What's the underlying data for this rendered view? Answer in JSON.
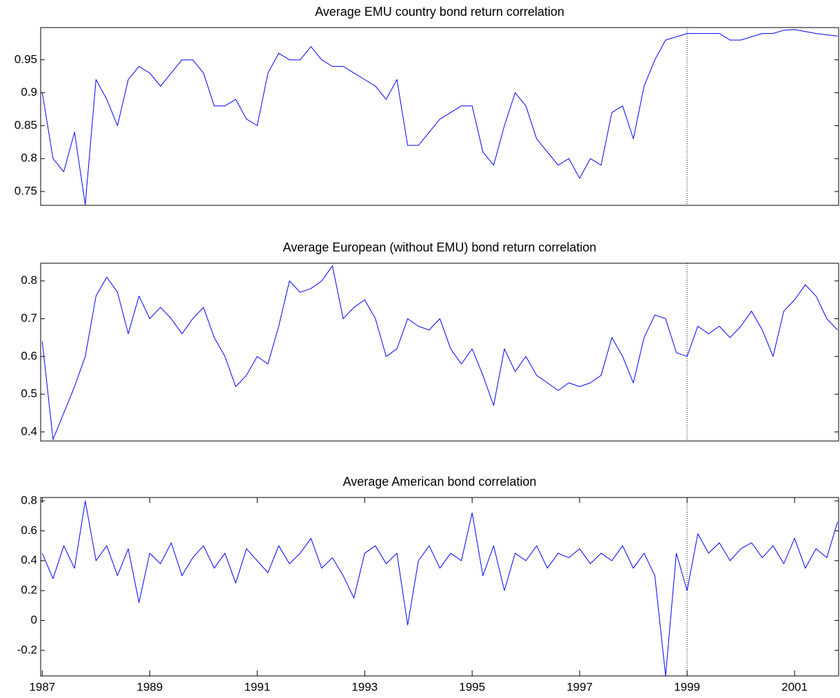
{
  "chart_data": [
    {
      "type": "line",
      "title": "Average EMU country bond return correlation",
      "color": "#0000ff",
      "x": [
        1987.0,
        1987.2,
        1987.4,
        1987.6,
        1987.8,
        1988.0,
        1988.2,
        1988.4,
        1988.6,
        1988.8,
        1989.0,
        1989.2,
        1989.4,
        1989.6,
        1989.8,
        1990.0,
        1990.2,
        1990.4,
        1990.6,
        1990.8,
        1991.0,
        1991.2,
        1991.4,
        1991.6,
        1991.8,
        1992.0,
        1992.2,
        1992.4,
        1992.6,
        1992.8,
        1993.0,
        1993.2,
        1993.4,
        1993.6,
        1993.8,
        1994.0,
        1994.2,
        1994.4,
        1994.6,
        1994.8,
        1995.0,
        1995.2,
        1995.4,
        1995.6,
        1995.8,
        1996.0,
        1996.2,
        1996.4,
        1996.6,
        1996.8,
        1997.0,
        1997.2,
        1997.4,
        1997.6,
        1997.8,
        1998.0,
        1998.2,
        1998.4,
        1998.6,
        1998.8,
        1999.0,
        1999.2,
        1999.4,
        1999.6,
        1999.8,
        2000.0,
        2000.2,
        2000.4,
        2000.6,
        2000.8,
        2001.0,
        2001.2,
        2001.4,
        2001.6,
        2001.8
      ],
      "values": [
        0.9,
        0.8,
        0.78,
        0.84,
        0.73,
        0.92,
        0.89,
        0.85,
        0.92,
        0.94,
        0.93,
        0.91,
        0.93,
        0.95,
        0.95,
        0.93,
        0.88,
        0.88,
        0.89,
        0.86,
        0.85,
        0.93,
        0.96,
        0.95,
        0.95,
        0.97,
        0.95,
        0.94,
        0.94,
        0.93,
        0.92,
        0.91,
        0.89,
        0.92,
        0.82,
        0.82,
        0.84,
        0.86,
        0.87,
        0.88,
        0.88,
        0.81,
        0.79,
        0.85,
        0.9,
        0.88,
        0.83,
        0.81,
        0.79,
        0.8,
        0.77,
        0.8,
        0.79,
        0.87,
        0.88,
        0.83,
        0.91,
        0.95,
        0.98,
        0.985,
        0.99,
        0.99,
        0.99,
        0.99,
        0.98,
        0.98,
        0.985,
        0.99,
        0.99,
        0.995,
        0.996,
        0.993,
        0.99,
        0.988,
        0.986
      ],
      "ylim": [
        0.729,
        0.999
      ],
      "yticks": [
        0.75,
        0.8,
        0.85,
        0.9,
        0.95
      ],
      "xlim": [
        1986.97,
        2001.82
      ],
      "xticks": [],
      "vline": 1999
    },
    {
      "type": "line",
      "title": "Average European (without EMU) bond return correlation",
      "color": "#0000ff",
      "x": [
        1987.0,
        1987.2,
        1987.4,
        1987.6,
        1987.8,
        1988.0,
        1988.2,
        1988.4,
        1988.6,
        1988.8,
        1989.0,
        1989.2,
        1989.4,
        1989.6,
        1989.8,
        1990.0,
        1990.2,
        1990.4,
        1990.6,
        1990.8,
        1991.0,
        1991.2,
        1991.4,
        1991.6,
        1991.8,
        1992.0,
        1992.2,
        1992.4,
        1992.6,
        1992.8,
        1993.0,
        1993.2,
        1993.4,
        1993.6,
        1993.8,
        1994.0,
        1994.2,
        1994.4,
        1994.6,
        1994.8,
        1995.0,
        1995.2,
        1995.4,
        1995.6,
        1995.8,
        1996.0,
        1996.2,
        1996.4,
        1996.6,
        1996.8,
        1997.0,
        1997.2,
        1997.4,
        1997.6,
        1997.8,
        1998.0,
        1998.2,
        1998.4,
        1998.6,
        1998.8,
        1999.0,
        1999.2,
        1999.4,
        1999.6,
        1999.8,
        2000.0,
        2000.2,
        2000.4,
        2000.6,
        2000.8,
        2001.0,
        2001.2,
        2001.4,
        2001.6,
        2001.8
      ],
      "values": [
        0.64,
        0.38,
        0.45,
        0.52,
        0.6,
        0.76,
        0.81,
        0.77,
        0.66,
        0.76,
        0.7,
        0.73,
        0.7,
        0.66,
        0.7,
        0.73,
        0.65,
        0.6,
        0.52,
        0.55,
        0.6,
        0.58,
        0.68,
        0.8,
        0.77,
        0.78,
        0.8,
        0.84,
        0.7,
        0.73,
        0.75,
        0.7,
        0.6,
        0.62,
        0.7,
        0.68,
        0.67,
        0.7,
        0.62,
        0.58,
        0.62,
        0.55,
        0.47,
        0.62,
        0.56,
        0.6,
        0.55,
        0.53,
        0.51,
        0.53,
        0.52,
        0.53,
        0.55,
        0.65,
        0.6,
        0.53,
        0.65,
        0.71,
        0.7,
        0.61,
        0.6,
        0.68,
        0.66,
        0.68,
        0.65,
        0.68,
        0.72,
        0.67,
        0.6,
        0.72,
        0.75,
        0.79,
        0.76,
        0.7,
        0.67
      ],
      "ylim": [
        0.376,
        0.847
      ],
      "yticks": [
        0.4,
        0.5,
        0.6,
        0.7,
        0.8
      ],
      "xlim": [
        1986.97,
        2001.82
      ],
      "xticks": [],
      "vline": 1999
    },
    {
      "type": "line",
      "title": "Average American bond correlation",
      "color": "#0000ff",
      "x": [
        1987.0,
        1987.2,
        1987.4,
        1987.6,
        1987.8,
        1988.0,
        1988.2,
        1988.4,
        1988.6,
        1988.8,
        1989.0,
        1989.2,
        1989.4,
        1989.6,
        1989.8,
        1990.0,
        1990.2,
        1990.4,
        1990.6,
        1990.8,
        1991.0,
        1991.2,
        1991.4,
        1991.6,
        1991.8,
        1992.0,
        1992.2,
        1992.4,
        1992.6,
        1992.8,
        1993.0,
        1993.2,
        1993.4,
        1993.6,
        1993.8,
        1994.0,
        1994.2,
        1994.4,
        1994.6,
        1994.8,
        1995.0,
        1995.2,
        1995.4,
        1995.6,
        1995.8,
        1996.0,
        1996.2,
        1996.4,
        1996.6,
        1996.8,
        1997.0,
        1997.2,
        1997.4,
        1997.6,
        1997.8,
        1998.0,
        1998.2,
        1998.4,
        1998.6,
        1998.8,
        1999.0,
        1999.2,
        1999.4,
        1999.6,
        1999.8,
        2000.0,
        2000.2,
        2000.4,
        2000.6,
        2000.8,
        2001.0,
        2001.2,
        2001.4,
        2001.6,
        2001.8
      ],
      "values": [
        0.45,
        0.28,
        0.5,
        0.35,
        0.8,
        0.4,
        0.5,
        0.3,
        0.48,
        0.12,
        0.45,
        0.38,
        0.52,
        0.3,
        0.42,
        0.5,
        0.35,
        0.45,
        0.25,
        0.48,
        0.4,
        0.32,
        0.5,
        0.38,
        0.45,
        0.55,
        0.35,
        0.42,
        0.3,
        0.15,
        0.45,
        0.5,
        0.38,
        0.45,
        -0.03,
        0.4,
        0.5,
        0.35,
        0.45,
        0.4,
        0.72,
        0.3,
        0.5,
        0.2,
        0.45,
        0.4,
        0.5,
        0.35,
        0.45,
        0.42,
        0.48,
        0.38,
        0.45,
        0.4,
        0.5,
        0.35,
        0.45,
        0.3,
        -0.37,
        0.45,
        0.2,
        0.58,
        0.45,
        0.52,
        0.4,
        0.48,
        0.52,
        0.42,
        0.5,
        0.38,
        0.55,
        0.35,
        0.48,
        0.42,
        0.66
      ],
      "ylim": [
        -0.371,
        0.823
      ],
      "yticks": [
        -0.2,
        0,
        0.2,
        0.4,
        0.6,
        0.8
      ],
      "xlim": [
        1986.97,
        2001.82
      ],
      "xticks": [
        1987,
        1989,
        1991,
        1993,
        1995,
        1997,
        1999,
        2001
      ],
      "vline": 1999
    }
  ]
}
